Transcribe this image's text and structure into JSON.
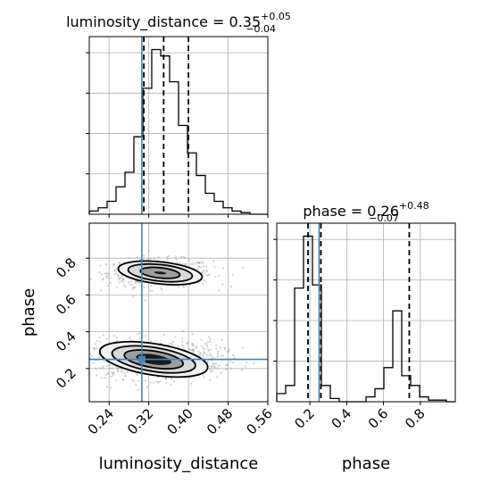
{
  "chart_data": {
    "type": "corner",
    "grid": true,
    "parameters": [
      "luminosity_distance",
      "phase"
    ],
    "truths": {
      "luminosity_distance": 0.306,
      "phase": 0.25
    },
    "titles": [
      {
        "param": "luminosity_distance",
        "text": "luminosity_distance = 0.35",
        "sup": "+0.05",
        "sub": "−0.04"
      },
      {
        "param": "phase",
        "text": "phase = 0.26",
        "sup": "+0.48",
        "sub": "−0.07"
      }
    ],
    "xlabels": {
      "luminosity_distance": "luminosity_distance",
      "phase": "phase"
    },
    "ylabels": {
      "phase": "phase"
    },
    "xticks": {
      "luminosity_distance": [
        "0.24",
        "0.32",
        "0.40",
        "0.48",
        "0.56"
      ],
      "phase": [
        "0.2",
        "0.4",
        "0.6",
        "0.8"
      ]
    },
    "yticks": {
      "phase": [
        "0.2",
        "0.4",
        "0.6",
        "0.8"
      ]
    },
    "ranges": {
      "luminosity_distance": [
        0.2,
        0.56
      ],
      "phase": [
        0.02,
        0.99
      ]
    },
    "hist_luminosity_distance": {
      "bin_edges": [
        0.2,
        0.218,
        0.236,
        0.254,
        0.272,
        0.29,
        0.308,
        0.326,
        0.344,
        0.362,
        0.38,
        0.398,
        0.416,
        0.434,
        0.452,
        0.47,
        0.488,
        0.506,
        0.524,
        0.542,
        0.56
      ],
      "counts": [
        2,
        4,
        8,
        17,
        26,
        48,
        78,
        102,
        98,
        82,
        55,
        38,
        24,
        13,
        8,
        4,
        2,
        1,
        0,
        0
      ],
      "quantiles": [
        0.31,
        0.35,
        0.4
      ],
      "y_max": 110
    },
    "hist_phase": {
      "bin_edges": [
        0.02,
        0.0685,
        0.117,
        0.1655,
        0.214,
        0.2625,
        0.311,
        0.3595,
        0.408,
        0.4565,
        0.505,
        0.5535,
        0.602,
        0.6505,
        0.699,
        0.7475,
        0.796,
        0.8445,
        0.893,
        0.9415,
        0.99
      ],
      "counts": [
        5,
        10,
        70,
        102,
        72,
        10,
        2,
        0,
        0,
        0,
        3,
        8,
        21,
        56,
        16,
        10,
        3,
        1,
        1,
        0
      ],
      "quantiles": [
        0.19,
        0.26,
        0.74
      ],
      "y_max": 110
    },
    "contour_regions": [
      {
        "center": [
          0.343,
          0.72
        ],
        "half_widths": [
          [
            0.085,
            0.06
          ],
          [
            0.065,
            0.045
          ],
          [
            0.04,
            0.028
          ],
          [
            0.012,
            0.007
          ]
        ]
      },
      {
        "center": [
          0.33,
          0.25
        ],
        "half_widths": [
          [
            0.11,
            0.085
          ],
          [
            0.085,
            0.065
          ],
          [
            0.06,
            0.045
          ],
          [
            0.036,
            0.027
          ]
        ]
      }
    ],
    "colors": {
      "truth": "#4682b4",
      "hist": "#000000",
      "quantile": "#000000",
      "grid": "#b0b0b0",
      "samples": "#9a9a9a"
    }
  }
}
